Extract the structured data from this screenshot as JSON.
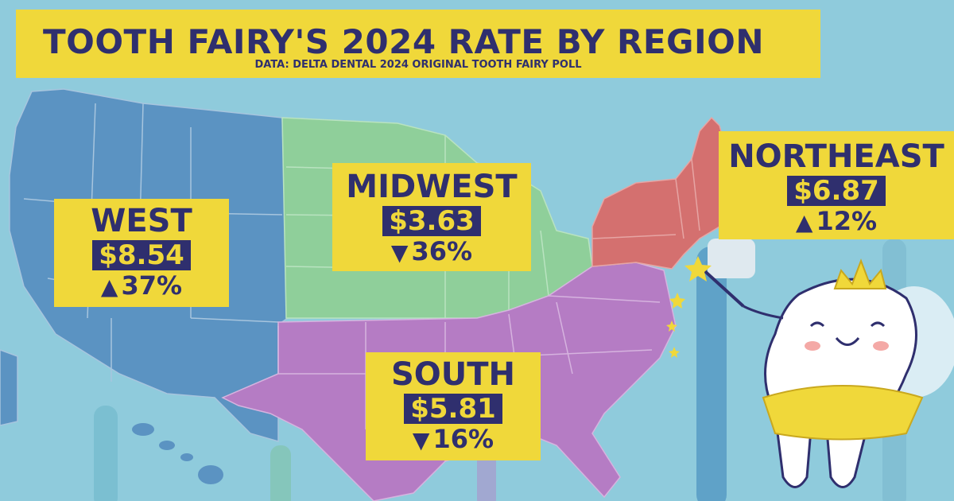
{
  "title": "TOOTH FAIRY'S 2024 RATE BY REGION",
  "subtitle": "DATA: DELTA DENTAL 2024 ORIGINAL TOOTH FAIRY POLL",
  "colors": {
    "background": "#8fcbdc",
    "banner": "#f0d83a",
    "text": "#2f2f6e",
    "west": "#5b93c2",
    "midwest": "#8fcf9a",
    "south": "#b57cc4",
    "northeast": "#d4706f"
  },
  "regions": {
    "west": {
      "name": "WEST",
      "rate": "$8.54",
      "arrow": "▲",
      "change": "37%"
    },
    "midwest": {
      "name": "MIDWEST",
      "rate": "$3.63",
      "arrow": "▼",
      "change": "36%"
    },
    "south": {
      "name": "SOUTH",
      "rate": "$5.81",
      "arrow": "▼",
      "change": "16%"
    },
    "northeast": {
      "name": "NORTHEAST",
      "rate": "$6.87",
      "arrow": "▲",
      "change": "12%"
    }
  }
}
